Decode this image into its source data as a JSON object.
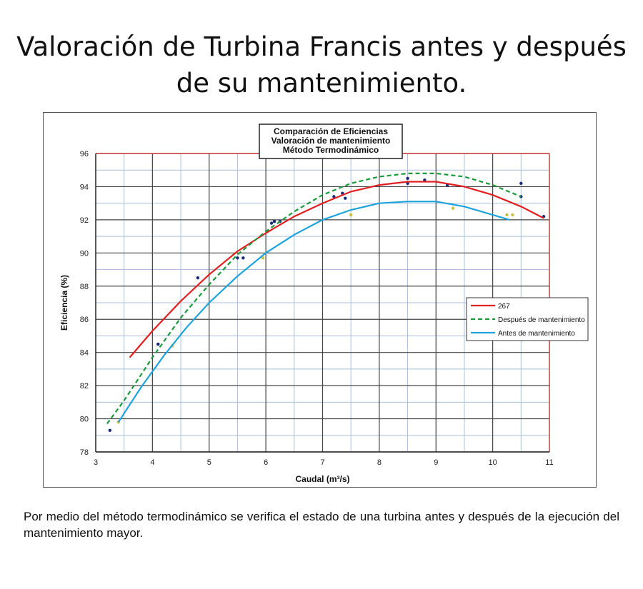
{
  "page": {
    "title_line1": "Valoración de Turbina Francis antes y después",
    "title_line2": "de su mantenimiento.",
    "caption": "Por medio del método termodinámico se verifica el estado de una turbina antes y después de la ejecución del mantenimiento mayor."
  },
  "chart_data": {
    "type": "line",
    "title_lines": [
      "Comparación de Eficiencias",
      "Valoración de mantenimiento",
      "Método Termodinámico"
    ],
    "xlabel": "Caudal  (m³/s)",
    "ylabel": "Eficiencia (%)",
    "xlim": [
      3,
      11
    ],
    "ylim": [
      78,
      96
    ],
    "x_ticks": [
      3,
      4,
      5,
      6,
      7,
      8,
      9,
      10,
      11
    ],
    "y_ticks": [
      78,
      80,
      82,
      84,
      86,
      88,
      90,
      92,
      94,
      96
    ],
    "grid": true,
    "legend_position": "right",
    "series": [
      {
        "name": "267",
        "color": "#e02020",
        "style": "solid",
        "x": [
          3.6,
          4.0,
          4.5,
          5.0,
          5.5,
          6.0,
          6.5,
          7.0,
          7.5,
          8.0,
          8.5,
          9.0,
          9.5,
          10.0,
          10.5,
          10.9
        ],
        "values": [
          83.7,
          85.3,
          87.1,
          88.7,
          90.1,
          91.2,
          92.2,
          93.0,
          93.7,
          94.1,
          94.3,
          94.3,
          94.0,
          93.5,
          92.8,
          92.1
        ],
        "points": [
          [
            4.1,
            84.5
          ],
          [
            4.8,
            88.5
          ],
          [
            6.1,
            91.8
          ],
          [
            6.25,
            91.9
          ],
          [
            7.2,
            93.4
          ],
          [
            7.4,
            93.3
          ],
          [
            8.5,
            94.2
          ],
          [
            8.8,
            94.4
          ],
          [
            9.2,
            94.1
          ],
          [
            10.9,
            92.2
          ]
        ]
      },
      {
        "name": "Después de mantenimiento",
        "color": "#1a9a3a",
        "style": "dashed",
        "x": [
          3.2,
          3.5,
          4.0,
          4.5,
          5.0,
          5.5,
          6.0,
          6.5,
          7.0,
          7.5,
          8.0,
          8.5,
          9.0,
          9.5,
          10.0,
          10.5
        ],
        "values": [
          79.7,
          81.1,
          83.7,
          86.1,
          88.1,
          89.9,
          91.3,
          92.5,
          93.5,
          94.2,
          94.6,
          94.8,
          94.8,
          94.6,
          94.1,
          93.4
        ],
        "points": [
          [
            3.25,
            79.3
          ],
          [
            4.1,
            84.5
          ],
          [
            5.5,
            89.7
          ],
          [
            5.6,
            89.7
          ],
          [
            6.15,
            91.9
          ],
          [
            7.35,
            93.6
          ],
          [
            8.5,
            94.5
          ],
          [
            10.5,
            94.2
          ],
          [
            10.5,
            93.4
          ]
        ]
      },
      {
        "name": "Antes de mantenimiento",
        "color": "#1ea3dc",
        "style": "solid",
        "x": [
          3.4,
          3.8,
          4.2,
          4.6,
          5.0,
          5.5,
          6.0,
          6.5,
          7.0,
          7.5,
          8.0,
          8.5,
          9.0,
          9.5,
          10.0,
          10.3
        ],
        "values": [
          79.8,
          81.9,
          83.8,
          85.5,
          87.0,
          88.6,
          90.0,
          91.1,
          92.0,
          92.6,
          93.0,
          93.1,
          93.1,
          92.8,
          92.3,
          92.0
        ],
        "points": [
          [
            3.4,
            79.8
          ],
          [
            4.35,
            84.4
          ],
          [
            5.95,
            89.7
          ],
          [
            7.5,
            92.3
          ],
          [
            9.3,
            92.7
          ],
          [
            10.25,
            92.3
          ],
          [
            10.35,
            92.3
          ]
        ]
      }
    ]
  }
}
